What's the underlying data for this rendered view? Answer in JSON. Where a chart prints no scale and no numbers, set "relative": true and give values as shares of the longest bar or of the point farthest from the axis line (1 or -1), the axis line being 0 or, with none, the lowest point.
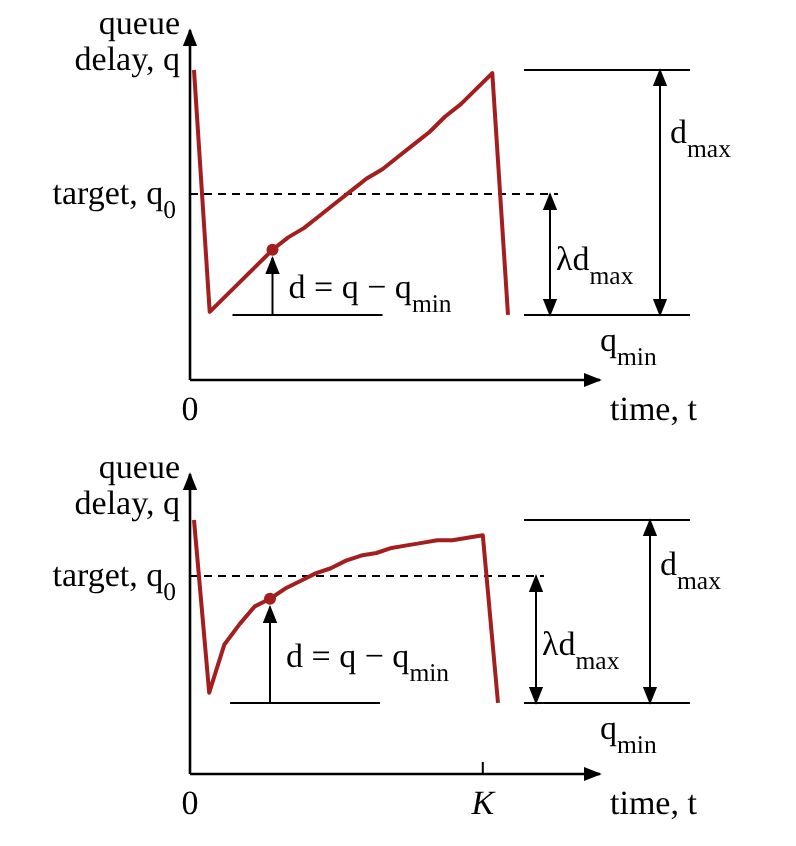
{
  "chart_data": [
    {
      "type": "line",
      "relative": true,
      "ylabel": "queue delay, q",
      "xlabel": "time, t",
      "categories": [
        null,
        null,
        null,
        null,
        null,
        null,
        null,
        null,
        null,
        null,
        null,
        null,
        null,
        null,
        null,
        null,
        null,
        null,
        null,
        null,
        null
      ],
      "ref_lines": [
        {
          "axis": "y",
          "value": 0.6,
          "label": "target, q$_{0}$",
          "line_style": "dashed"
        }
      ],
      "series": [
        {
          "color": "#a31f1f",
          "values": [
            1.0,
            0.22,
            0.27,
            0.32,
            0.37,
            0.42,
            0.46,
            0.49,
            0.53,
            0.57,
            0.61,
            0.65,
            0.68,
            0.72,
            0.76,
            0.8,
            0.85,
            0.89,
            0.94,
            0.99,
            0.21
          ]
        }
      ],
      "annotations": [
        "d = q − q$_{min}$",
        "λd$_{max}$",
        "d$_{max}$",
        "q$_{min}$",
        "0"
      ]
    },
    {
      "type": "line",
      "relative": true,
      "ylabel": "queue delay, q",
      "xlabel": "time, t",
      "categories": [
        null,
        null,
        null,
        null,
        null,
        null,
        null,
        null,
        null,
        null,
        null,
        null,
        null,
        null,
        null,
        null,
        null,
        null,
        null,
        null,
        null
      ],
      "ref_lines": [
        {
          "axis": "y",
          "value": 0.78,
          "label": "target, q$_{0}$",
          "line_style": "dashed"
        }
      ],
      "series": [
        {
          "color": "#a31f1f",
          "values": [
            1.0,
            0.32,
            0.51,
            0.59,
            0.66,
            0.69,
            0.73,
            0.76,
            0.79,
            0.81,
            0.84,
            0.86,
            0.87,
            0.89,
            0.9,
            0.91,
            0.92,
            0.92,
            0.93,
            0.94,
            0.28
          ]
        }
      ],
      "annotations": [
        "d = q − q$_{min}$",
        "λd$_{max}$",
        "d$_{max}$",
        "q$_{min}$",
        "0",
        "K"
      ]
    }
  ]
}
